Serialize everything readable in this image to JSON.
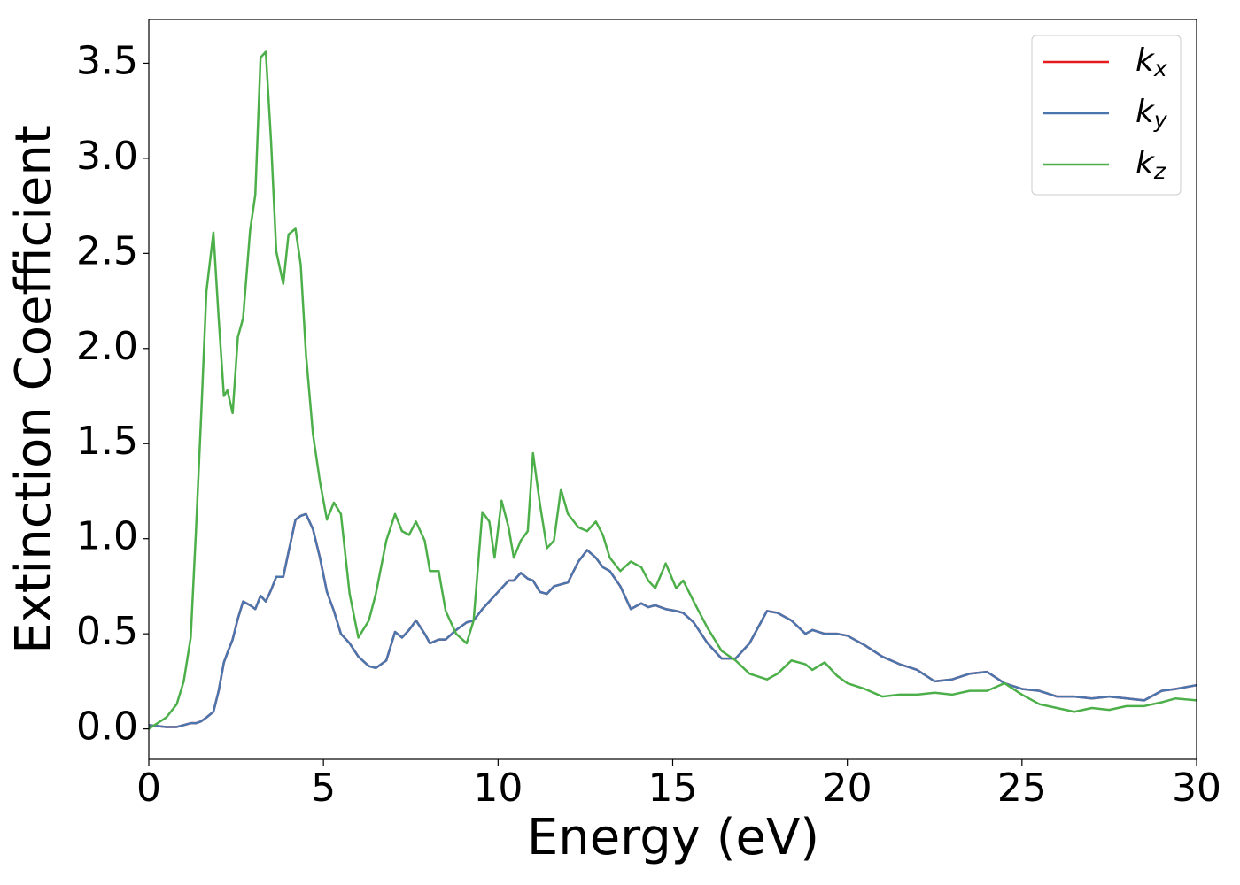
{
  "chart_data": {
    "type": "line",
    "xlabel": "Energy (eV)",
    "ylabel": "Extinction Coefficient",
    "xlim": [
      0,
      30
    ],
    "ylim": [
      -0.16,
      3.73
    ],
    "xticks": [
      0,
      5,
      10,
      15,
      20,
      25,
      30
    ],
    "yticks": [
      {
        "value": 0,
        "label": "0.0"
      },
      0.5,
      {
        "value": 1,
        "label": "1.0"
      },
      1.5,
      {
        "value": 2,
        "label": "2.0"
      },
      2.5,
      {
        "value": 3,
        "label": "3.0"
      },
      3.5
    ],
    "legend": "upper right",
    "x": [
      0,
      0.5,
      0.8,
      1.0,
      1.2,
      1.35,
      1.5,
      1.65,
      1.85,
      2.0,
      2.15,
      2.25,
      2.4,
      2.55,
      2.7,
      2.9,
      3.05,
      3.2,
      3.35,
      3.5,
      3.65,
      3.85,
      4.0,
      4.2,
      4.35,
      4.5,
      4.7,
      4.9,
      5.1,
      5.3,
      5.5,
      5.75,
      6.0,
      6.3,
      6.5,
      6.8,
      7.05,
      7.25,
      7.45,
      7.65,
      7.9,
      8.05,
      8.3,
      8.5,
      8.8,
      9.1,
      9.3,
      9.55,
      9.75,
      9.9,
      10.1,
      10.3,
      10.45,
      10.65,
      10.85,
      11.0,
      11.2,
      11.4,
      11.6,
      11.8,
      12.0,
      12.3,
      12.55,
      12.8,
      13.0,
      13.2,
      13.5,
      13.8,
      14.1,
      14.3,
      14.5,
      14.8,
      15.1,
      15.3,
      15.6,
      16.0,
      16.4,
      16.8,
      17.2,
      17.7,
      18.0,
      18.4,
      18.8,
      19.0,
      19.35,
      19.7,
      20.0,
      20.5,
      21.0,
      21.5,
      22.0,
      22.5,
      23.0,
      23.5,
      24.0,
      24.5,
      25.0,
      25.5,
      26.0,
      26.5,
      27.0,
      27.5,
      28.0,
      28.5,
      29.0,
      29.4,
      30.0
    ],
    "series": [
      {
        "name": "kx",
        "color": "#e41a1c",
        "values": [
          0.02,
          0.01,
          0.01,
          0.02,
          0.03,
          0.03,
          0.04,
          0.06,
          0.09,
          0.2,
          0.35,
          0.4,
          0.47,
          0.58,
          0.67,
          0.65,
          0.63,
          0.7,
          0.67,
          0.73,
          0.8,
          0.8,
          0.93,
          1.1,
          1.12,
          1.13,
          1.05,
          0.9,
          0.72,
          0.62,
          0.5,
          0.45,
          0.38,
          0.33,
          0.32,
          0.36,
          0.51,
          0.48,
          0.52,
          0.57,
          0.5,
          0.45,
          0.47,
          0.47,
          0.52,
          0.56,
          0.57,
          0.63,
          0.67,
          0.7,
          0.74,
          0.78,
          0.78,
          0.82,
          0.79,
          0.78,
          0.72,
          0.71,
          0.75,
          0.76,
          0.77,
          0.88,
          0.94,
          0.9,
          0.85,
          0.83,
          0.75,
          0.63,
          0.66,
          0.64,
          0.65,
          0.63,
          0.62,
          0.61,
          0.56,
          0.45,
          0.37,
          0.37,
          0.45,
          0.62,
          0.61,
          0.57,
          0.5,
          0.52,
          0.5,
          0.5,
          0.49,
          0.44,
          0.38,
          0.34,
          0.31,
          0.25,
          0.26,
          0.29,
          0.3,
          0.24,
          0.21,
          0.2,
          0.17,
          0.17,
          0.16,
          0.17,
          0.16,
          0.15,
          0.2,
          0.21,
          0.23
        ]
      },
      {
        "name": "ky",
        "color": "#4a75ad",
        "values": [
          0.02,
          0.01,
          0.01,
          0.02,
          0.03,
          0.03,
          0.04,
          0.06,
          0.09,
          0.2,
          0.35,
          0.4,
          0.47,
          0.58,
          0.67,
          0.65,
          0.63,
          0.7,
          0.67,
          0.73,
          0.8,
          0.8,
          0.93,
          1.1,
          1.12,
          1.13,
          1.05,
          0.9,
          0.72,
          0.62,
          0.5,
          0.45,
          0.38,
          0.33,
          0.32,
          0.36,
          0.51,
          0.48,
          0.52,
          0.57,
          0.5,
          0.45,
          0.47,
          0.47,
          0.52,
          0.56,
          0.57,
          0.63,
          0.67,
          0.7,
          0.74,
          0.78,
          0.78,
          0.82,
          0.79,
          0.78,
          0.72,
          0.71,
          0.75,
          0.76,
          0.77,
          0.88,
          0.94,
          0.9,
          0.85,
          0.83,
          0.75,
          0.63,
          0.66,
          0.64,
          0.65,
          0.63,
          0.62,
          0.61,
          0.56,
          0.45,
          0.37,
          0.37,
          0.45,
          0.62,
          0.61,
          0.57,
          0.5,
          0.52,
          0.5,
          0.5,
          0.49,
          0.44,
          0.38,
          0.34,
          0.31,
          0.25,
          0.26,
          0.29,
          0.3,
          0.24,
          0.21,
          0.2,
          0.17,
          0.17,
          0.16,
          0.17,
          0.16,
          0.15,
          0.2,
          0.21,
          0.23
        ]
      },
      {
        "name": "kz",
        "color": "#4daf4a",
        "values": [
          0,
          0.06,
          0.13,
          0.25,
          0.48,
          1.04,
          1.65,
          2.3,
          2.61,
          2.16,
          1.75,
          1.78,
          1.66,
          2.06,
          2.16,
          2.62,
          2.81,
          3.53,
          3.56,
          3.09,
          2.51,
          2.34,
          2.6,
          2.63,
          2.44,
          1.97,
          1.55,
          1.3,
          1.1,
          1.19,
          1.13,
          0.71,
          0.48,
          0.57,
          0.71,
          0.99,
          1.13,
          1.04,
          1.02,
          1.09,
          0.99,
          0.83,
          0.83,
          0.62,
          0.5,
          0.45,
          0.57,
          1.14,
          1.09,
          0.9,
          1.2,
          1.06,
          0.9,
          0.99,
          1.04,
          1.45,
          1.18,
          0.95,
          0.99,
          1.26,
          1.13,
          1.06,
          1.04,
          1.09,
          1.02,
          0.9,
          0.83,
          0.88,
          0.85,
          0.78,
          0.74,
          0.87,
          0.74,
          0.78,
          0.67,
          0.53,
          0.41,
          0.36,
          0.29,
          0.26,
          0.29,
          0.36,
          0.34,
          0.31,
          0.35,
          0.28,
          0.24,
          0.21,
          0.17,
          0.18,
          0.18,
          0.19,
          0.18,
          0.2,
          0.2,
          0.24,
          0.18,
          0.13,
          0.11,
          0.09,
          0.11,
          0.1,
          0.12,
          0.12,
          0.14,
          0.16,
          0.15
        ]
      }
    ]
  }
}
